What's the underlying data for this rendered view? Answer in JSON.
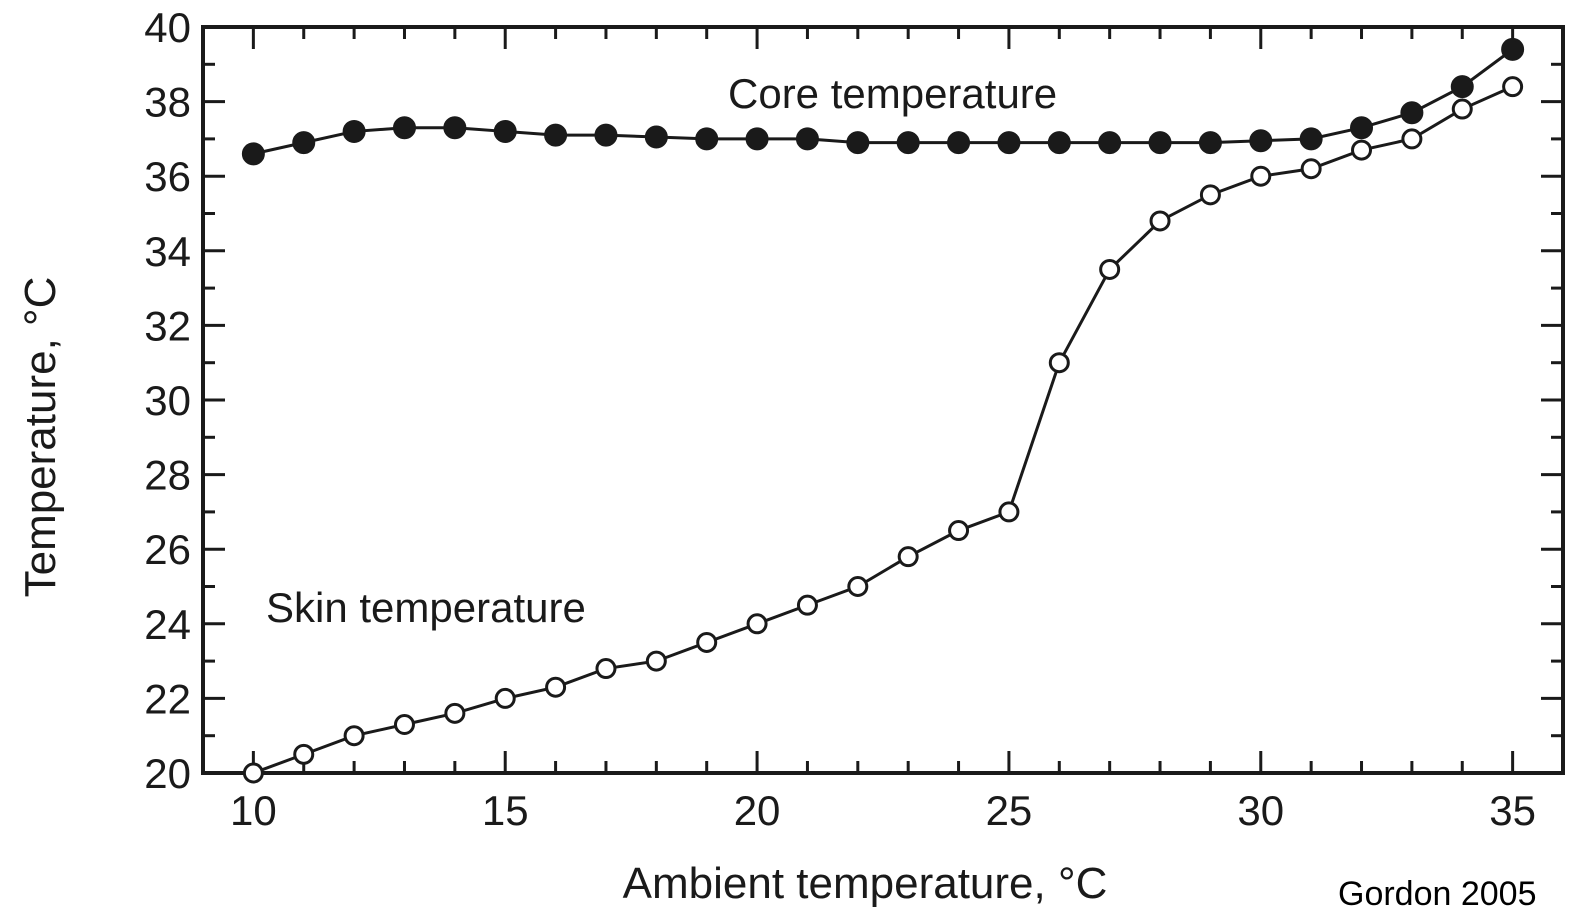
{
  "chart_data": {
    "type": "line",
    "xlabel": "Ambient temperature, °C",
    "ylabel": "Temperature, °C",
    "xlim": [
      9,
      36
    ],
    "ylim": [
      20,
      40
    ],
    "x_ticks": [
      10,
      15,
      20,
      25,
      30,
      35
    ],
    "y_ticks": [
      20,
      22,
      24,
      26,
      28,
      30,
      32,
      34,
      36,
      38,
      40
    ],
    "grid": false,
    "legend": "none",
    "x": [
      10,
      11,
      12,
      13,
      14,
      15,
      16,
      17,
      18,
      19,
      20,
      21,
      22,
      23,
      24,
      25,
      26,
      27,
      28,
      29,
      30,
      31,
      32,
      33,
      34,
      35
    ],
    "series": [
      {
        "name": "Core temperature",
        "marker": "filled-circle",
        "values": [
          36.6,
          36.9,
          37.2,
          37.3,
          37.3,
          37.2,
          37.1,
          37.1,
          37.05,
          37.0,
          37.0,
          37.0,
          36.9,
          36.9,
          36.9,
          36.9,
          36.9,
          36.9,
          36.9,
          36.9,
          36.95,
          37.0,
          37.3,
          37.7,
          38.4,
          39.4
        ]
      },
      {
        "name": "Skin temperature",
        "marker": "open-circle",
        "values": [
          20.0,
          20.5,
          21.0,
          21.3,
          21.6,
          22.0,
          22.3,
          22.8,
          23.0,
          23.5,
          24.0,
          24.5,
          25.0,
          25.8,
          26.5,
          27.0,
          31.0,
          33.5,
          34.8,
          35.5,
          36.0,
          36.2,
          36.7,
          37.0,
          37.8,
          38.4
        ]
      }
    ],
    "annotations": [
      "Core temperature",
      "Skin temperature"
    ],
    "colors": {
      "line": "#1a1a1a",
      "open_marker_fill": "#ffffff"
    }
  },
  "credit": "Gordon 2005"
}
